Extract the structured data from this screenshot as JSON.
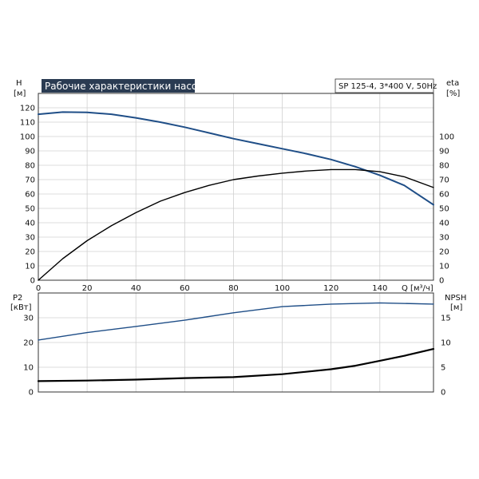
{
  "chart_data": [
    {
      "type": "line",
      "title": "Рабочие характеристики насоса",
      "model_label": "SP 125-4, 3*400 V, 50Hz",
      "left_axis": {
        "label": "H",
        "unit": "[м]",
        "range": [
          0,
          130
        ],
        "ticks": [
          0,
          10,
          20,
          30,
          40,
          50,
          60,
          70,
          80,
          90,
          100,
          110,
          120
        ]
      },
      "right_axis": {
        "label": "eta",
        "unit": "[%]",
        "range": [
          0,
          130
        ],
        "ticks": [
          0,
          10,
          20,
          30,
          40,
          50,
          60,
          70,
          80,
          90,
          100
        ]
      },
      "x_axis": {
        "label": "Q [м³/ч]",
        "range": [
          0,
          162
        ],
        "ticks": [
          0,
          20,
          40,
          60,
          80,
          100,
          120,
          140
        ]
      },
      "grid": true,
      "series": [
        {
          "name": "H",
          "axis": "left",
          "color": "#1f4e87",
          "x": [
            0,
            10,
            20,
            30,
            40,
            50,
            60,
            70,
            80,
            90,
            100,
            110,
            120,
            130,
            140,
            150,
            162
          ],
          "y": [
            115.5,
            117,
            116.8,
            115.5,
            113,
            110,
            106.5,
            102.5,
            98.5,
            95,
            91.5,
            88,
            84,
            79,
            73,
            66,
            52.5
          ]
        },
        {
          "name": "eta",
          "axis": "right",
          "color": "#000000",
          "x": [
            0,
            10,
            20,
            30,
            40,
            50,
            60,
            70,
            80,
            90,
            100,
            110,
            120,
            130,
            140,
            150,
            162
          ],
          "y": [
            0,
            15,
            27.5,
            38,
            47,
            55,
            61,
            66,
            70,
            72.5,
            74.5,
            76,
            77,
            77,
            75.5,
            72,
            64.5
          ]
        }
      ]
    },
    {
      "type": "line",
      "left_axis": {
        "label": "P2",
        "unit": "[кВт]",
        "range": [
          0,
          40
        ],
        "ticks": [
          0,
          10,
          20,
          30
        ]
      },
      "right_axis": {
        "label": "NPSH",
        "unit": "[м]",
        "range": [
          0,
          20
        ],
        "ticks": [
          0,
          5,
          10,
          15
        ]
      },
      "x_axis": {
        "range": [
          0,
          162
        ]
      },
      "grid": true,
      "series": [
        {
          "name": "P2",
          "axis": "left",
          "color": "#1f4e87",
          "x": [
            0,
            20,
            40,
            60,
            80,
            100,
            120,
            140,
            162
          ],
          "y": [
            21,
            24,
            26.5,
            29,
            32,
            34.5,
            35.5,
            36,
            35.5
          ]
        },
        {
          "name": "NPSH",
          "axis": "right",
          "color": "#000000",
          "x": [
            0,
            20,
            40,
            60,
            80,
            100,
            120,
            130,
            140,
            150,
            162
          ],
          "y": [
            2.2,
            2.3,
            2.5,
            2.8,
            3.0,
            3.6,
            4.6,
            5.3,
            6.3,
            7.3,
            8.7
          ]
        }
      ]
    }
  ]
}
